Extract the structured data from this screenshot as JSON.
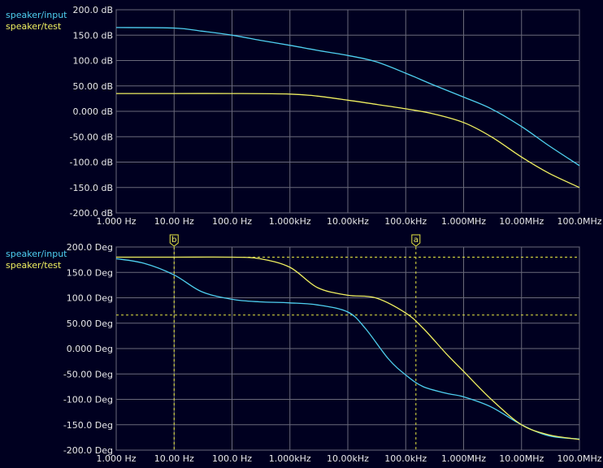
{
  "colors": {
    "background": "#000020",
    "grid": "#6a6a7a",
    "text": "#e8e8e8",
    "series_input": "#4fd0f0",
    "series_test": "#f0f060",
    "cursor": "#e6e640"
  },
  "chart_data": [
    {
      "type": "line",
      "xscale": "log",
      "xlim": [
        1,
        100000000
      ],
      "ylim": [
        -200,
        200
      ],
      "grid": true,
      "legend": "top-left",
      "xticklabels": [
        "1.000 Hz",
        "10.00 Hz",
        "100.0 Hz",
        "1.000kHz",
        "10.00kHz",
        "100.0kHz",
        "1.000MHz",
        "10.00MHz",
        "100.0MHz"
      ],
      "yticklabels": [
        "200.0 dB",
        "150.0 dB",
        "100.0 dB",
        "50.00 dB",
        "0.000 dB",
        "-50.00 dB",
        "-100.0 dB",
        "-150.0 dB",
        "-200.0 dB"
      ],
      "series": [
        {
          "name": "speaker/input",
          "color": "#4fd0f0",
          "x": [
            1,
            10,
            30,
            100,
            300,
            1000,
            3000,
            10000,
            30000,
            100000,
            300000,
            1000000,
            3000000,
            10000000,
            30000000,
            100000000
          ],
          "y": [
            165,
            164,
            158,
            150,
            140,
            130,
            120,
            110,
            98,
            75,
            52,
            28,
            5,
            -30,
            -68,
            -107
          ]
        },
        {
          "name": "speaker/test",
          "color": "#f0f060",
          "x": [
            1,
            10,
            100,
            1000,
            3000,
            10000,
            30000,
            100000,
            300000,
            1000000,
            3000000,
            10000000,
            30000000,
            100000000
          ],
          "y": [
            35,
            35,
            35,
            34,
            30,
            22,
            14,
            5,
            -5,
            -22,
            -50,
            -90,
            -122,
            -150
          ]
        }
      ],
      "cursors": []
    },
    {
      "type": "line",
      "xscale": "log",
      "xlim": [
        1,
        100000000
      ],
      "ylim": [
        -200,
        200
      ],
      "grid": true,
      "legend": "top-left",
      "xticklabels": [
        "1.000 Hz",
        "10.00 Hz",
        "100.0 Hz",
        "1.000kHz",
        "10.00kHz",
        "100.0kHz",
        "1.000MHz",
        "10.00MHz",
        "100.0MHz"
      ],
      "yticklabels": [
        "200.0 Deg",
        "150.0 Deg",
        "100.0 Deg",
        "50.00 Deg",
        "0.000 Deg",
        "-50.00 Deg",
        "-100.0 Deg",
        "-150.0 Deg",
        "-200.0 Deg"
      ],
      "series": [
        {
          "name": "speaker/input",
          "color": "#4fd0f0",
          "x": [
            1,
            3,
            10,
            30,
            100,
            300,
            1000,
            3000,
            10000,
            20000,
            50000,
            100000,
            200000,
            500000,
            1000000,
            3000000,
            10000000,
            30000000,
            100000000
          ],
          "y": [
            177,
            168,
            145,
            112,
            97,
            92,
            90,
            86,
            72,
            40,
            -20,
            -52,
            -75,
            -88,
            -95,
            -115,
            -150,
            -172,
            -178
          ]
        },
        {
          "name": "speaker/test",
          "color": "#f0f060",
          "x": [
            1,
            10,
            100,
            300,
            1000,
            3000,
            10000,
            30000,
            100000,
            200000,
            500000,
            1000000,
            3000000,
            10000000,
            30000000,
            100000000
          ],
          "y": [
            180,
            180,
            180,
            177,
            160,
            120,
            105,
            100,
            70,
            40,
            -10,
            -45,
            -100,
            -150,
            -170,
            -179
          ]
        }
      ],
      "cursors": [
        {
          "label": "b",
          "x": 10,
          "y": 180
        },
        {
          "label": "a",
          "x": 150000,
          "y": 66
        }
      ]
    }
  ]
}
